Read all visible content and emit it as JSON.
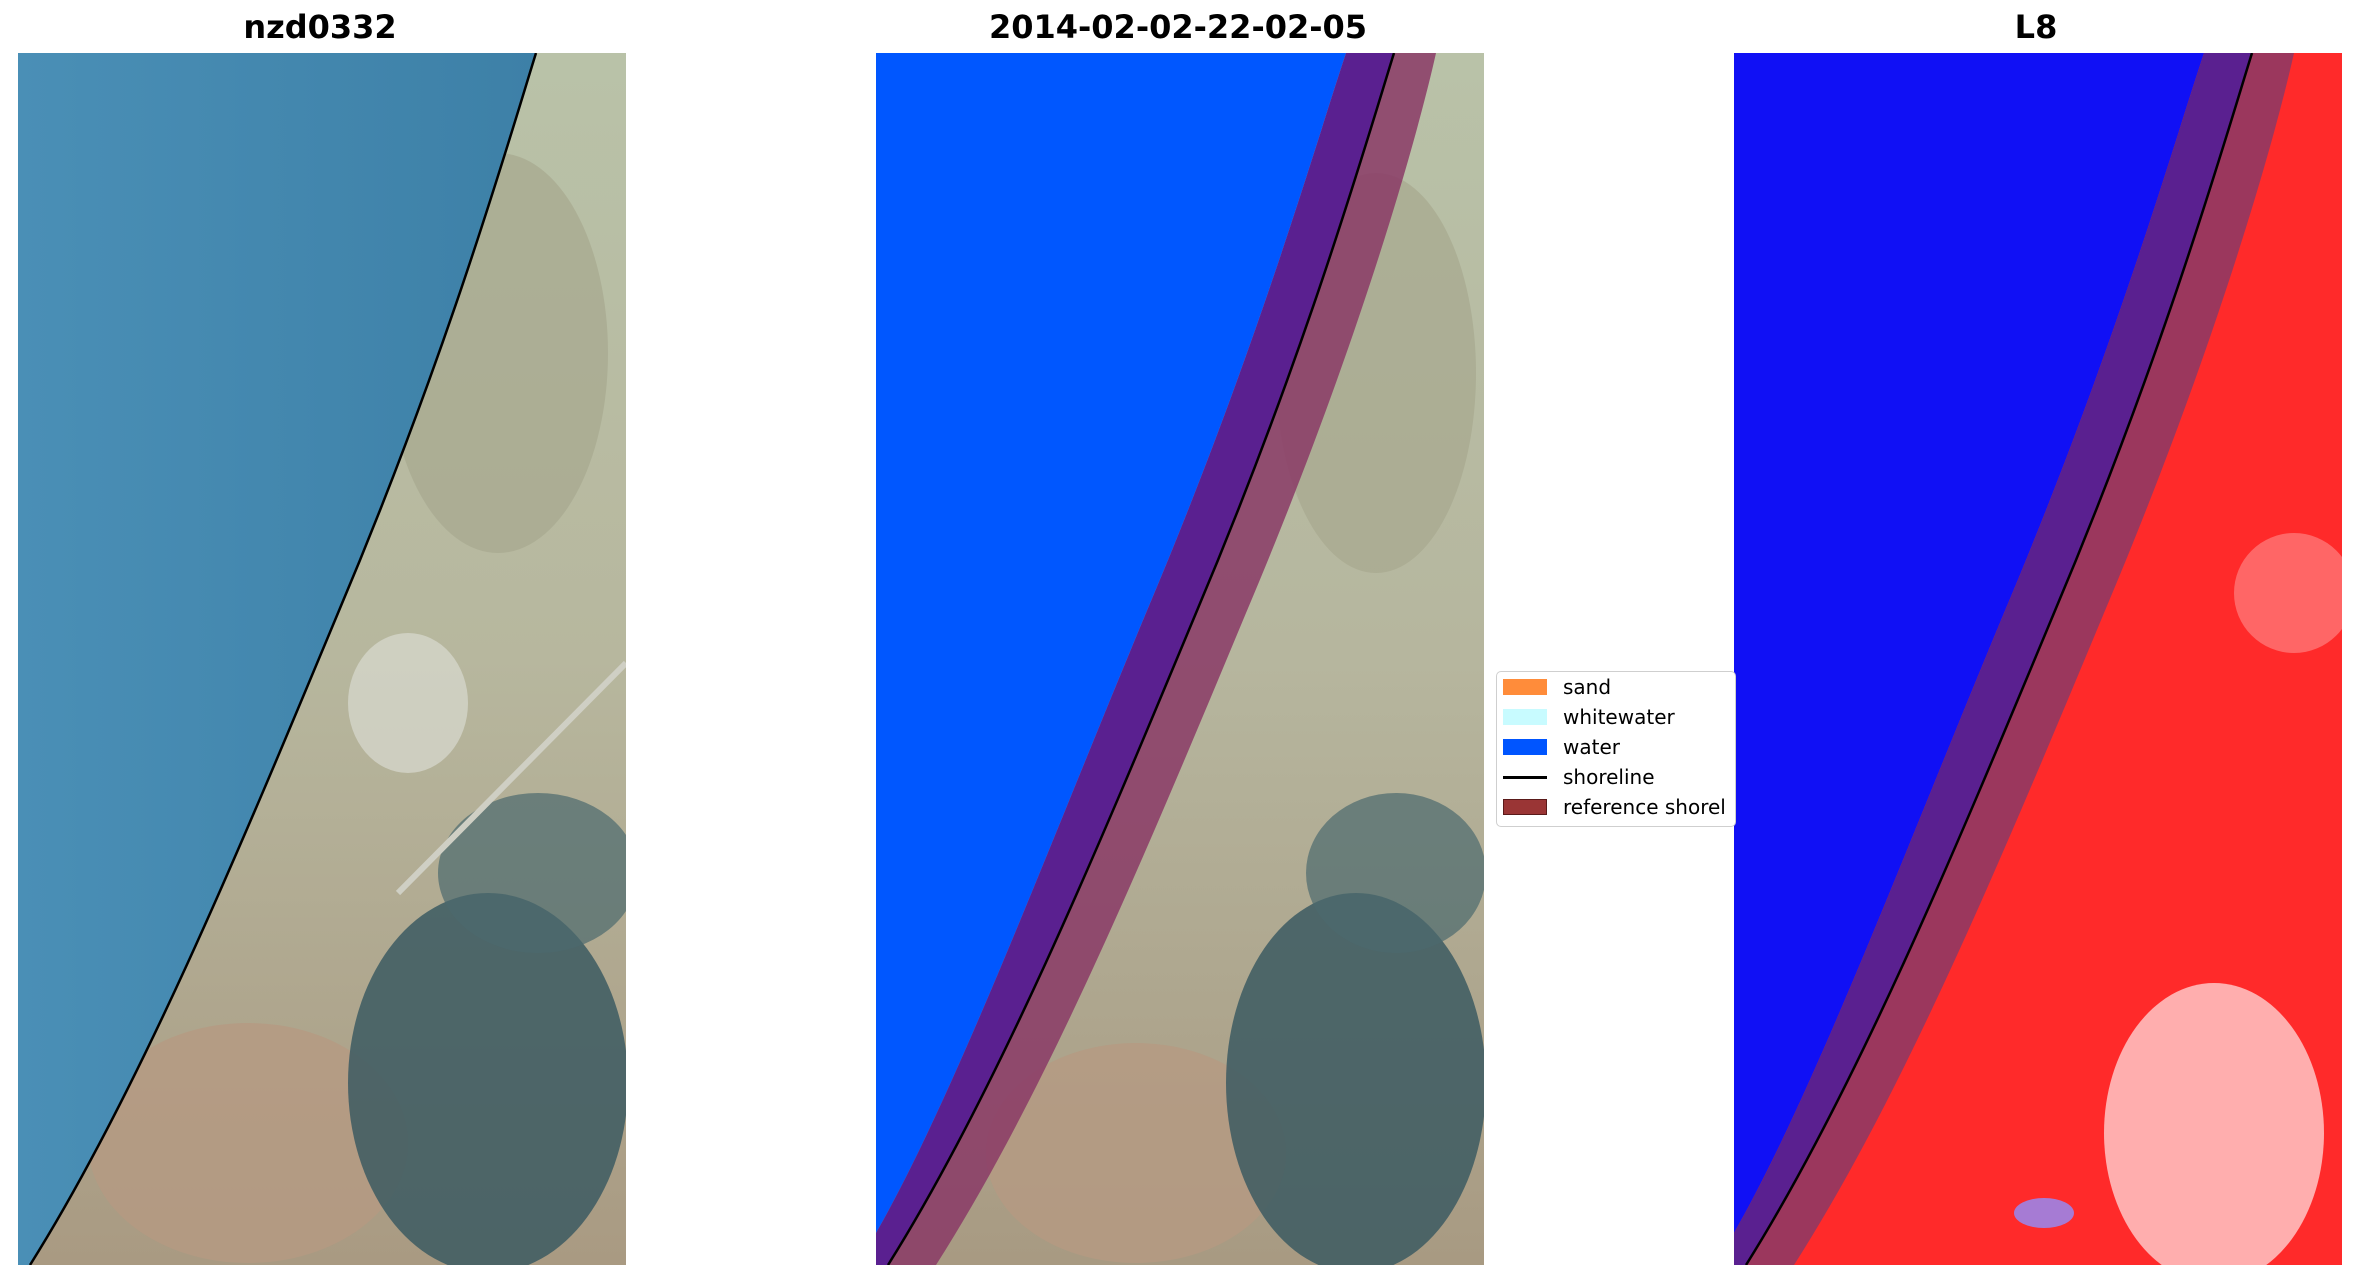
{
  "panels": [
    {
      "title": "nzd0332"
    },
    {
      "title": "2014-02-02-22-02-05"
    },
    {
      "title": "L8"
    }
  ],
  "legend": {
    "items": [
      {
        "label": "sand",
        "color": "#ff8c3a",
        "kind": "patch"
      },
      {
        "label": "whitewater",
        "color": "#c8fbff",
        "kind": "patch"
      },
      {
        "label": "water",
        "color": "#0055ff",
        "kind": "patch"
      },
      {
        "label": "shoreline",
        "color": "#000000",
        "kind": "line"
      },
      {
        "label": "reference shorel",
        "color": "#9a3535",
        "kind": "patch"
      }
    ]
  },
  "colors": {
    "sea_rgb": "#3f86ad",
    "water_class": "#0057ff",
    "water_index": "#1010f5",
    "land_index": "#ff2020",
    "buffer": "#5a2090",
    "reference_band": "#8a3a66"
  }
}
